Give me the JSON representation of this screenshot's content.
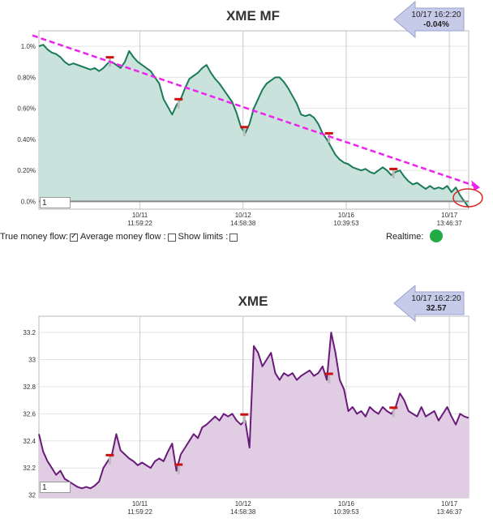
{
  "charts": {
    "mf": {
      "title": "XME MF",
      "arrow_line1": "10/17 16:2:20",
      "arrow_line2": "-0.04%",
      "input_value": "1",
      "controls": {
        "true_money_flow_label": "True money flow:",
        "average_money_flow_label": "Average money flow :",
        "show_limits_label": "Show limits :",
        "realtime_label": "Realtime:"
      },
      "colors": {
        "line": "#1a7a5a",
        "fill": "#c9e3dc",
        "trend": "#ee22ee",
        "realtime": "#22aa44",
        "circle": "#dd2222"
      }
    },
    "px": {
      "title": "XME",
      "arrow_line1": "10/17 16:2:20",
      "arrow_line2": "32.57",
      "input_value": "1",
      "colors": {
        "line": "#6a1a7a",
        "fill": "#e0cde3"
      }
    }
  },
  "chart_data": [
    {
      "type": "area",
      "title": "XME MF",
      "ylim": [
        -0.05,
        1.1
      ],
      "xlim": [
        0,
        100
      ],
      "y_ticks": [
        {
          "value": 1.0,
          "label": "1.0%"
        },
        {
          "value": 0.8,
          "label": "0.80%"
        },
        {
          "value": 0.6,
          "label": "0.60%"
        },
        {
          "value": 0.4,
          "label": "0.40%"
        },
        {
          "value": 0.2,
          "label": "0.20%"
        },
        {
          "value": 0.0,
          "label": "0.0%"
        }
      ],
      "x_ticks": [
        {
          "x": 23.5,
          "date": "10/11",
          "time": "11:59:22"
        },
        {
          "x": 47.5,
          "date": "10/12",
          "time": "14:58:38"
        },
        {
          "x": 71.5,
          "date": "10/16",
          "time": "10:39:53"
        },
        {
          "x": 95.5,
          "date": "10/17",
          "time": "13:46:37"
        }
      ],
      "grid": true,
      "x": [
        0,
        1,
        2,
        3,
        4,
        5,
        6,
        7,
        8,
        9,
        10,
        11,
        12,
        13,
        14,
        15,
        16,
        17,
        18,
        19,
        20,
        21,
        22,
        23,
        24,
        25,
        26,
        27,
        28,
        29,
        30,
        31,
        32,
        33,
        34,
        35,
        36,
        37,
        38,
        39,
        40,
        41,
        42,
        43,
        44,
        45,
        46,
        47,
        48,
        49,
        50,
        51,
        52,
        53,
        54,
        55,
        56,
        57,
        58,
        59,
        60,
        61,
        62,
        63,
        64,
        65,
        66,
        67,
        68,
        69,
        70,
        71,
        72,
        73,
        74,
        75,
        76,
        77,
        78,
        79,
        80,
        81,
        82,
        83,
        84,
        85,
        86,
        87,
        88,
        89,
        90,
        91,
        92,
        93,
        94,
        95,
        96,
        97,
        98,
        99,
        100
      ],
      "y": [
        1.0,
        1.01,
        0.98,
        0.96,
        0.95,
        0.93,
        0.9,
        0.88,
        0.89,
        0.88,
        0.87,
        0.86,
        0.85,
        0.86,
        0.84,
        0.86,
        0.89,
        0.9,
        0.88,
        0.86,
        0.9,
        0.97,
        0.93,
        0.9,
        0.88,
        0.86,
        0.84,
        0.8,
        0.76,
        0.66,
        0.61,
        0.56,
        0.62,
        0.66,
        0.73,
        0.79,
        0.81,
        0.83,
        0.86,
        0.88,
        0.83,
        0.79,
        0.76,
        0.72,
        0.68,
        0.64,
        0.57,
        0.48,
        0.44,
        0.5,
        0.6,
        0.66,
        0.72,
        0.76,
        0.78,
        0.8,
        0.8,
        0.77,
        0.73,
        0.68,
        0.63,
        0.56,
        0.55,
        0.56,
        0.54,
        0.5,
        0.44,
        0.4,
        0.35,
        0.3,
        0.27,
        0.25,
        0.24,
        0.22,
        0.21,
        0.2,
        0.21,
        0.19,
        0.18,
        0.2,
        0.22,
        0.2,
        0.17,
        0.19,
        0.2,
        0.16,
        0.13,
        0.11,
        0.12,
        0.1,
        0.08,
        0.1,
        0.08,
        0.09,
        0.08,
        0.1,
        0.06,
        0.09,
        0.04,
        0.0,
        -0.04
      ],
      "trend_line": {
        "x": [
          0,
          100
        ],
        "y": [
          1.07,
          0.1
        ]
      },
      "markers_x": [
        16.5,
        32.5,
        47.8,
        67.5,
        82.5
      ]
    },
    {
      "type": "area",
      "title": "XME",
      "ylim": [
        31.98,
        33.32
      ],
      "xlim": [
        0,
        100
      ],
      "y_ticks": [
        {
          "value": 33.2,
          "label": "33.2"
        },
        {
          "value": 33.0,
          "label": "33"
        },
        {
          "value": 32.8,
          "label": "32.8"
        },
        {
          "value": 32.6,
          "label": "32.6"
        },
        {
          "value": 32.4,
          "label": "32.4"
        },
        {
          "value": 32.2,
          "label": "32.2"
        },
        {
          "value": 32.0,
          "label": "32"
        }
      ],
      "x_ticks": [
        {
          "x": 23.5,
          "date": "10/11",
          "time": "11:59:22"
        },
        {
          "x": 47.5,
          "date": "10/12",
          "time": "14:58:38"
        },
        {
          "x": 71.5,
          "date": "10/16",
          "time": "10:39:53"
        },
        {
          "x": 95.5,
          "date": "10/17",
          "time": "13:46:37"
        }
      ],
      "grid": true,
      "x": [
        0,
        1,
        2,
        3,
        4,
        5,
        6,
        7,
        8,
        9,
        10,
        11,
        12,
        13,
        14,
        15,
        16,
        17,
        18,
        19,
        20,
        21,
        22,
        23,
        24,
        25,
        26,
        27,
        28,
        29,
        30,
        31,
        32,
        33,
        34,
        35,
        36,
        37,
        38,
        39,
        40,
        41,
        42,
        43,
        44,
        45,
        46,
        47,
        48,
        49,
        50,
        51,
        52,
        53,
        54,
        55,
        56,
        57,
        58,
        59,
        60,
        61,
        62,
        63,
        64,
        65,
        66,
        67,
        68,
        69,
        70,
        71,
        72,
        73,
        74,
        75,
        76,
        77,
        78,
        79,
        80,
        81,
        82,
        83,
        84,
        85,
        86,
        87,
        88,
        89,
        90,
        91,
        92,
        93,
        94,
        95,
        96,
        97,
        98,
        99,
        100
      ],
      "y": [
        32.45,
        32.32,
        32.25,
        32.2,
        32.15,
        32.18,
        32.12,
        32.1,
        32.08,
        32.06,
        32.05,
        32.06,
        32.05,
        32.07,
        32.1,
        32.2,
        32.25,
        32.3,
        32.45,
        32.33,
        32.3,
        32.27,
        32.25,
        32.22,
        32.24,
        32.22,
        32.2,
        32.25,
        32.27,
        32.25,
        32.32,
        32.38,
        32.18,
        32.3,
        32.35,
        32.4,
        32.45,
        32.42,
        32.5,
        32.52,
        32.55,
        32.58,
        32.55,
        32.6,
        32.58,
        32.6,
        32.55,
        32.52,
        32.55,
        32.35,
        33.1,
        33.05,
        32.95,
        33.0,
        33.05,
        32.9,
        32.85,
        32.9,
        32.88,
        32.9,
        32.85,
        32.88,
        32.9,
        32.92,
        32.88,
        32.9,
        32.95,
        32.85,
        33.2,
        33.05,
        32.85,
        32.78,
        32.62,
        32.65,
        32.6,
        32.62,
        32.58,
        32.65,
        32.62,
        32.6,
        32.65,
        32.62,
        32.6,
        32.65,
        32.75,
        32.7,
        32.62,
        32.6,
        32.58,
        32.65,
        32.58,
        32.6,
        32.62,
        32.55,
        32.6,
        32.65,
        32.58,
        32.52,
        32.6,
        32.58,
        32.57
      ],
      "markers_x": [
        16.5,
        32.5,
        47.8,
        67.5,
        82.5
      ]
    }
  ]
}
